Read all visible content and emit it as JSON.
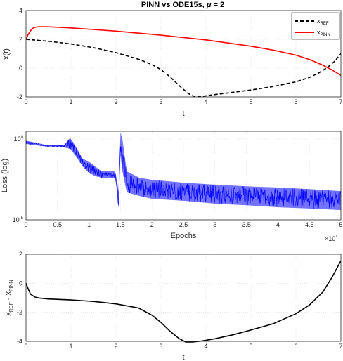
{
  "chart_data": [
    {
      "type": "line",
      "title_prefix": "PINN vs ODE15s, ",
      "title_mu": "μ",
      "title_suffix": " = 2",
      "xlabel": "t",
      "ylabel": "x(t)",
      "xlim": [
        0,
        7
      ],
      "ylim": [
        -2,
        4
      ],
      "xticks": [
        "0",
        "1",
        "2",
        "3",
        "4",
        "5",
        "6",
        "7"
      ],
      "yticks": [
        "-2",
        "0",
        "2",
        "4"
      ],
      "grid": true,
      "legend_position": "top-right",
      "series": [
        {
          "name_base": "x",
          "name_sub": "REF",
          "color": "#000000",
          "dash": true,
          "x": [
            0,
            0.5,
            1,
            1.5,
            2,
            2.5,
            2.8,
            3.0,
            3.2,
            3.4,
            3.6,
            3.75,
            3.9,
            4.1,
            4.5,
            5.0,
            5.5,
            6.0,
            6.3,
            6.5,
            6.7,
            6.85,
            7.0
          ],
          "y": [
            2.0,
            1.87,
            1.68,
            1.42,
            1.08,
            0.62,
            0.25,
            -0.1,
            -0.6,
            -1.2,
            -1.75,
            -1.98,
            -1.97,
            -1.88,
            -1.72,
            -1.52,
            -1.28,
            -0.95,
            -0.65,
            -0.35,
            0.05,
            0.45,
            1.0
          ]
        },
        {
          "name_base": "x",
          "name_sub": "PINN",
          "color": "#ff0000",
          "dash": false,
          "x": [
            0,
            0.05,
            0.1,
            0.15,
            0.2,
            0.3,
            0.5,
            1,
            2,
            3,
            4,
            5,
            5.5,
            6.0,
            6.3,
            6.6,
            6.8,
            7.0
          ],
          "y": [
            2.0,
            2.35,
            2.6,
            2.76,
            2.84,
            2.88,
            2.87,
            2.79,
            2.57,
            2.29,
            1.96,
            1.52,
            1.25,
            0.9,
            0.6,
            0.2,
            -0.12,
            -0.5
          ]
        }
      ]
    },
    {
      "type": "line",
      "xlabel": "Epochs",
      "ylabel": "Loss (log)",
      "xlim": [
        0,
        50000
      ],
      "ylog": true,
      "ylim": [
        1e-05,
        3
      ],
      "xticks": [
        "0",
        "0.5",
        "1",
        "1.5",
        "2",
        "2.5",
        "3",
        "3.5",
        "4",
        "4.5",
        "5"
      ],
      "ytick_labels": [
        {
          "base": "10",
          "exp": "0"
        },
        {
          "base": "10",
          "exp": "-5"
        }
      ],
      "x_exponent_base": "×10",
      "x_exponent_exp": "4",
      "grid": true,
      "series": [
        {
          "color": "#0000ff",
          "x": [
            0,
            3000,
            6000,
            7000,
            8000,
            9000,
            10000,
            11000,
            12000,
            13000,
            14000,
            14300,
            14700,
            15000,
            15300,
            16000,
            18000,
            20000,
            25000,
            30000,
            35000,
            40000,
            45000,
            50000
          ],
          "upper": [
            0.8,
            0.45,
            0.4,
            1.2,
            0.3,
            0.06,
            0.04,
            0.02,
            0.01,
            0.01,
            0.01,
            0.006,
            0.0005,
            2.5,
            1.0,
            0.01,
            0.004,
            0.003,
            0.002,
            0.0015,
            0.0012,
            0.001,
            0.0008,
            0.0006
          ],
          "lower": [
            0.5,
            0.35,
            0.3,
            0.25,
            0.08,
            0.02,
            0.008,
            0.005,
            0.004,
            0.004,
            0.004,
            0.002,
            5e-05,
            0.1,
            0.01,
            0.0005,
            0.0003,
            0.0002,
            0.00015,
            0.0001,
            8e-05,
            6e-05,
            5e-05,
            4e-05
          ]
        }
      ]
    },
    {
      "type": "line",
      "xlabel": "t",
      "ylabel_base": "x",
      "ylabel_sub1": "REF",
      "ylabel_mid": " - x",
      "ylabel_sub2": "PINN",
      "xlim": [
        0,
        7
      ],
      "ylim": [
        -4,
        2
      ],
      "xticks": [
        "0",
        "1",
        "2",
        "3",
        "4",
        "5",
        "6",
        "7"
      ],
      "yticks": [
        "-4",
        "-2",
        "0",
        "2"
      ],
      "grid": true,
      "series": [
        {
          "color": "#000000",
          "x": [
            0,
            0.05,
            0.1,
            0.2,
            0.3,
            0.5,
            1,
            1.5,
            2,
            2.5,
            2.8,
            3.0,
            3.2,
            3.4,
            3.55,
            3.7,
            3.9,
            4.2,
            4.6,
            5.0,
            5.5,
            6.0,
            6.3,
            6.6,
            6.8,
            7.0
          ],
          "y": [
            0,
            -0.4,
            -0.75,
            -0.95,
            -1.02,
            -1.08,
            -1.15,
            -1.25,
            -1.42,
            -1.7,
            -2.2,
            -2.7,
            -3.3,
            -3.8,
            -4.05,
            -4.05,
            -3.98,
            -3.82,
            -3.55,
            -3.22,
            -2.78,
            -2.1,
            -1.5,
            -0.6,
            0.4,
            1.55
          ]
        }
      ]
    }
  ]
}
